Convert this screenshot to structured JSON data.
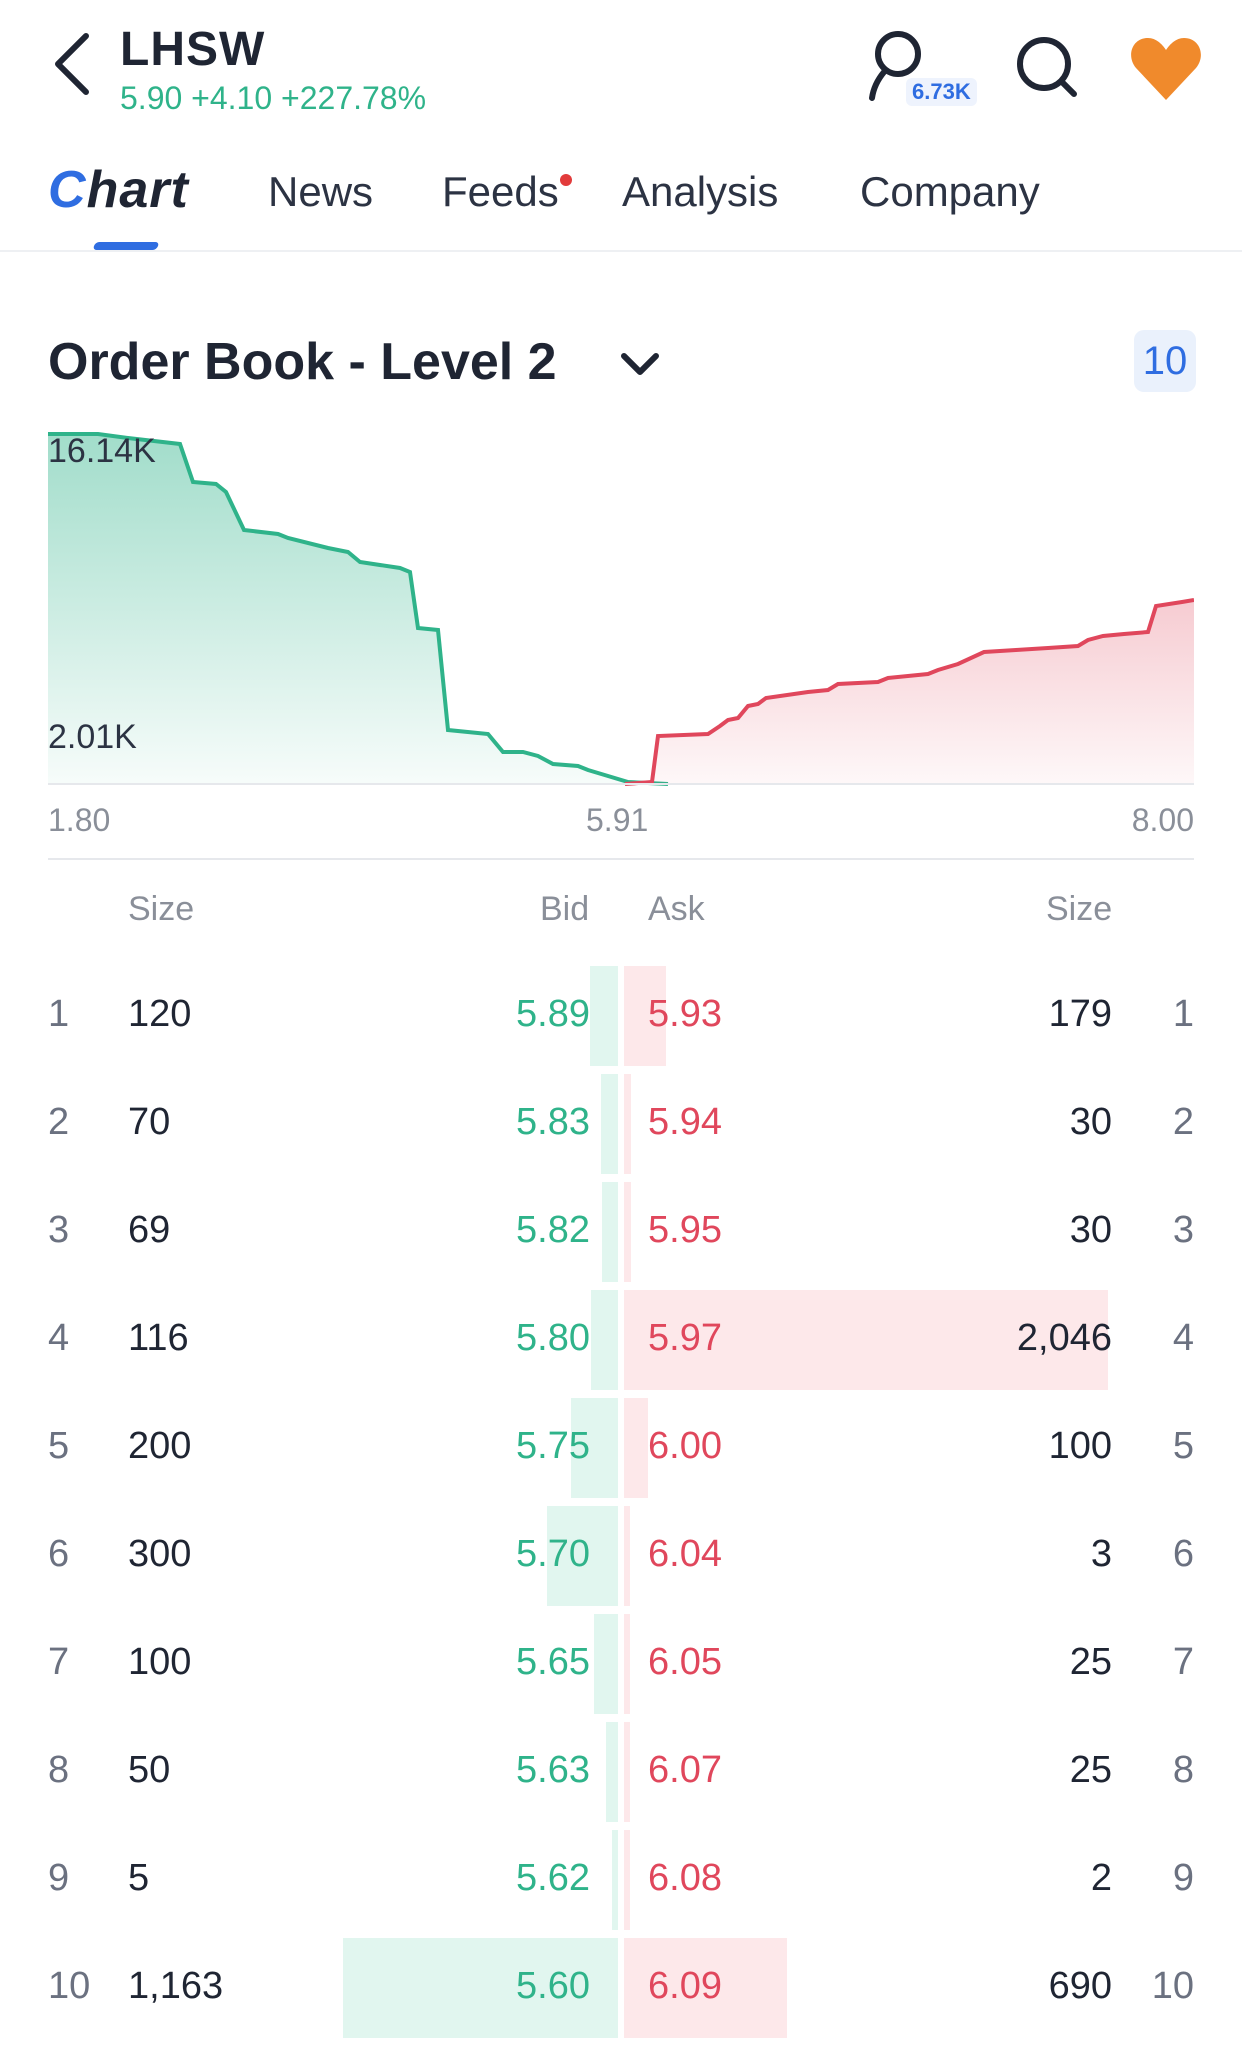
{
  "header": {
    "ticker": "LHSW",
    "quote": "5.90 +4.10 +227.78%",
    "follow_count": "6.73K",
    "icons": {
      "back": "chevron-left-icon",
      "follow": "user-follow-icon",
      "search": "search-icon",
      "watchlist": "heart-icon"
    },
    "colors": {
      "up": "#2fb38a",
      "accent": "#2f6de1",
      "heart": "#f08a2c"
    }
  },
  "tabs": [
    {
      "label": "Chart",
      "active": true
    },
    {
      "label": "News",
      "active": false
    },
    {
      "label": "Feeds",
      "active": false,
      "notification_dot": true
    },
    {
      "label": "Analysis",
      "active": false
    },
    {
      "label": "Company",
      "active": false
    }
  ],
  "order_book": {
    "title": "Order Book - Level 2",
    "depth_badge": "10",
    "chart": {
      "y_top_label": "16.14K",
      "y_bottom_label": "2.01K",
      "x_labels": [
        "1.80",
        "5.91",
        "8.00"
      ],
      "colors": {
        "bid": "#2fb38a",
        "ask": "#e0475c"
      }
    },
    "columns": {
      "left_size": "Size",
      "bid": "Bid",
      "ask": "Ask",
      "right_size": "Size"
    },
    "rows": [
      {
        "index": "1",
        "bid_size": "120",
        "bid": "5.89",
        "ask": "5.93",
        "ask_size": "179"
      },
      {
        "index": "2",
        "bid_size": "70",
        "bid": "5.83",
        "ask": "5.94",
        "ask_size": "30"
      },
      {
        "index": "3",
        "bid_size": "69",
        "bid": "5.82",
        "ask": "5.95",
        "ask_size": "30"
      },
      {
        "index": "4",
        "bid_size": "116",
        "bid": "5.80",
        "ask": "5.97",
        "ask_size": "2,046"
      },
      {
        "index": "5",
        "bid_size": "200",
        "bid": "5.75",
        "ask": "6.00",
        "ask_size": "100"
      },
      {
        "index": "6",
        "bid_size": "300",
        "bid": "5.70",
        "ask": "6.04",
        "ask_size": "3"
      },
      {
        "index": "7",
        "bid_size": "100",
        "bid": "5.65",
        "ask": "6.05",
        "ask_size": "25"
      },
      {
        "index": "8",
        "bid_size": "50",
        "bid": "5.63",
        "ask": "6.07",
        "ask_size": "25"
      },
      {
        "index": "9",
        "bid_size": "5",
        "bid": "5.62",
        "ask": "6.08",
        "ask_size": "2"
      },
      {
        "index": "10",
        "bid_size": "1,163",
        "bid": "5.60",
        "ask": "6.09",
        "ask_size": "690"
      }
    ]
  }
}
